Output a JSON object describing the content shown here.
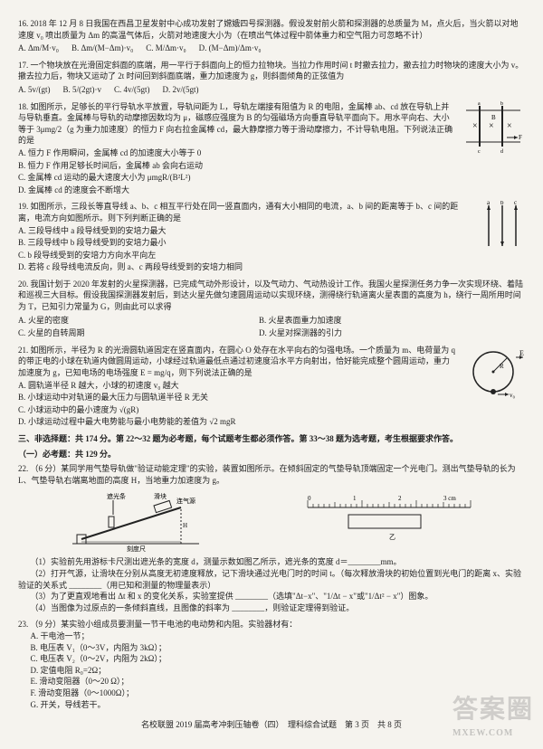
{
  "q16": {
    "num": "16.",
    "stem": "2018 年 12 月 8 日我国在西昌卫星发射中心成功发射了嫦娥四号探测器。假设发射前火箭和探测器的总质量为 M，点火后，当火箭以对地速度 v₀ 喷出质量为 Δm 的高温气体后，火箭对地速度大小为（在喷出气体过程中箭体重力和空气阻力可忽略不计）",
    "A": "A. Δm/M·v₀",
    "B": "B. Δm/(M−Δm)·v₀",
    "C": "C. M/Δm·v₀",
    "D": "D. (M−Δm)/Δm·v₀"
  },
  "q17": {
    "num": "17.",
    "stem": "一个物块放在光滑固定斜面的底端，用一平行于斜面向上的恒力拉物块。当拉力作用时间 t 时撤去拉力，撤去拉力时物块的速度大小为 v。撤去拉力后，物块又运动了 2t 时间回到斜面底端，重力加速度为 g，则斜面倾角的正弦值为",
    "A": "A. 5v/(gt)",
    "B": "B. 5/(2gt)·v",
    "C": "C. 4v/(5gt)",
    "D": "D. 2v/(5gt)"
  },
  "q18": {
    "num": "18.",
    "stem": "如图所示，足够长的平行导轨水平放置，导轨间距为 L，导轨左端接有阻值为 R 的电阻，金属棒 ab、cd 放在导轨上并与导轨垂直。金属棒与导轨的动摩擦因数均为 μ，磁感应强度为 B 的匀强磁场方向垂直导轨平面向下。用水平向右、大小等于 3μmg/2（g 为重力加速度）的恒力 F 向右拉金属棒 cd，最大静摩擦力等于滑动摩擦力，不计导轨电阻。下列说法正确的是",
    "A": "A. 恒力 F 作用瞬间，金属棒 cd 的加速度大小等于 0",
    "B": "B. 恒力 F 作用足够长时间后，金属棒 ab 会向右运动",
    "C": "C. 金属棒 cd 运动的最大速度大小为 μmgR/(B²L²)",
    "D": "D. 金属棒 cd 的速度会不断增大"
  },
  "q19": {
    "num": "19.",
    "stem": "如图所示，三段长等直导线 a、b、c 相互平行处在同一竖直面内，通有大小相同的电流，a、b 间的距离等于 b、c 间的距离，电流方向如图所示。则下列判断正确的是",
    "A": "A. 三段导线中 a 段导线受到的安培力最大",
    "B": "B. 三段导线中 b 段导线受到的安培力最小",
    "C": "C. b 段导线受到的安培力方向水平向左",
    "D": "D. 若将 c 段导线电流反向，则 a、c 两段导线受到的安培力相同"
  },
  "q20": {
    "num": "20.",
    "stem": "我国计划于 2020 年发射的火星探测器，已完成气动外形设计，以及气动力、气动热设计工作。我国火星探测任务力争一次实现环绕、着陆和巡视三大目标。假设我国探测器发射后，到达火星先做匀速圆周运动以实现环绕，测得绕行轨道离火星表面的高度为 h，绕行一周所用时间为 T，已知引力常量为 G，则由此可以求得",
    "A": "A. 火星的密度",
    "B": "B. 火星表面重力加速度",
    "C": "C. 火星的自转周期",
    "D": "D. 火星对探测器的引力"
  },
  "q21": {
    "num": "21.",
    "stem": "如图所示，半径为 R 的光滑圆轨道固定在竖直面内，在圆心 O 处存在水平向右的匀强电场。一个质量为 m、电荷量为 q 的带正电的小球在轨道内做圆周运动，小球经过轨道最低点通过初速度沿水平方向射出，恰好能完成整个圆周运动，重力加速度为 g，已知电场的电场强度 E = mg/q，则下列说法正确的是",
    "A": "A. 圆轨道半径 R 越大，小球的初速度 v₀ 越大",
    "B": "B. 小球运动中对轨道的最大压力与圆轨道半径 R 无关",
    "C": "C. 小球运动中的最小速度为 √(gR)",
    "D": "D. 小球运动过程中最大电势能与最小电势能的差值为 √2 mgR"
  },
  "section3": "三、非选择题：共 174 分。第 22～32 题为必考题，每个试题考生都必须作答。第 33～38 题为选考题，考生根据要求作答。",
  "section3a": "（一）必考题：共 129 分。",
  "q22": {
    "num": "22.",
    "stem": "（6 分）某同学用气垫导轨做\"验证动能定理\"的实验，装置如图所示。在倾斜固定的气垫导轨顶端固定一个光电门。测出气垫导轨的长为 L、气垫导轨右端离地面的高度 H，当地重力加速度为 g。",
    "p1": "（1）实验前先用游标卡尺测出遮光条的宽度 d，测量示数如图乙所示，遮光条的宽度 d＝________mm。",
    "p2": "（2）打开气源，让滑块在分别从高度无初速度释放，记下滑块通过光电门时的时间 t。（每次释放滑块的初始位置到光电门的距离 x、实验验证的关系式 ________（用已知和测量的物理量表示）",
    "p3": "（3）为了更直观地看出 Δt 和 x 的变化关系，实验室提供 ________（选填\"Δt−x\"、\"1/Δt − x\"或\"1/Δt² − x\"）图象。",
    "p4": "（4）当图像为过原点的一条倾斜直线，且图像的斜率为 ________，则验证定理得到验证。"
  },
  "q23": {
    "num": "23.",
    "stem": "（9 分）某实验小组成员要测量一节干电池的电动势和内阻。实验器材有：",
    "items": [
      "A. 干电池一节；",
      "B. 电压表 V₁（0～3V，内阻为 3kΩ）；",
      "C. 电压表 V₂（0～2V，内阻为 2kΩ）；",
      "D. 定值电阻 R₀=2Ω；",
      "E. 滑动变阻器（0～20 Ω）；",
      "F. 滑动变阻器（0～1000Ω）；",
      "G. 开关，导线若干。"
    ]
  },
  "footer": "名校联盟 2019 届高考冲刺压轴卷（四）　理科综合试题　第 3 页　共 8 页",
  "watermark": {
    "big": "答案圈",
    "small": "MXEW.COM"
  },
  "ruler": {
    "main_ticks": [
      0,
      1,
      2,
      3
    ],
    "length_mm": 30,
    "vernier_pos": 1.6
  },
  "colors": {
    "text": "#222222",
    "paper": "#f5f3ee",
    "bg": "#3a4a5a",
    "wm": "rgba(120,120,120,0.3)"
  }
}
